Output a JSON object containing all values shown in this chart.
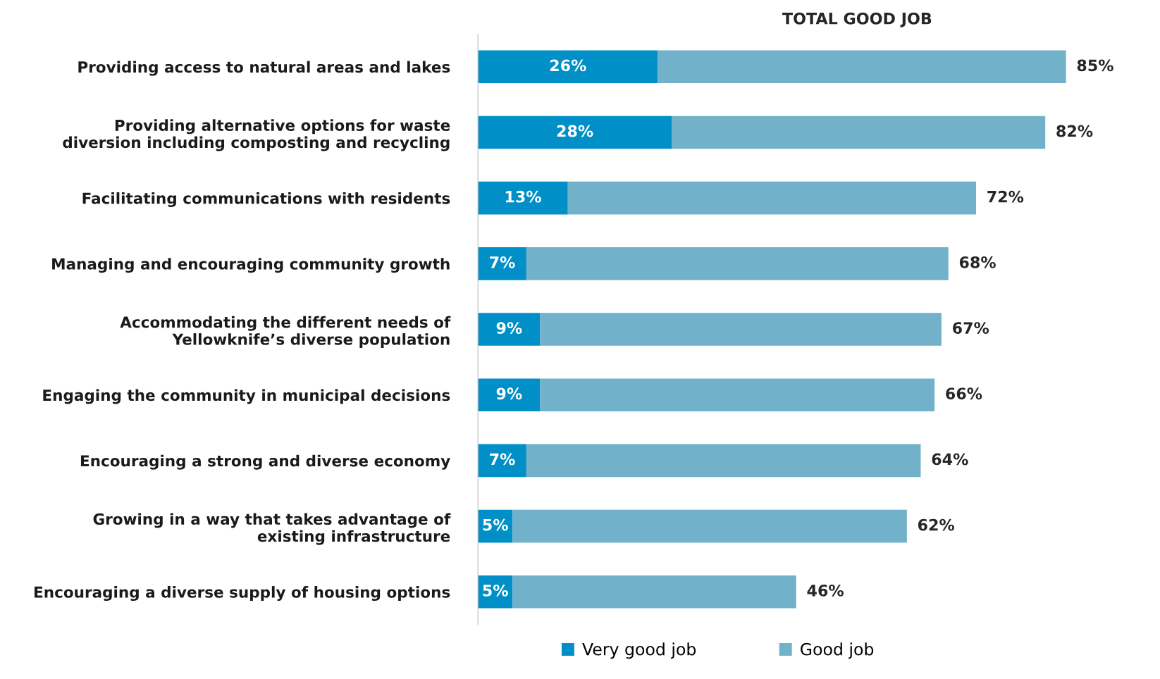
{
  "chart_data": {
    "type": "bar",
    "orientation": "horizontal",
    "stacked": true,
    "title": "TOTAL GOOD JOB",
    "categories": [
      "Providing access to natural areas and lakes",
      "Providing alternative options for waste\ndiversion including composting and recycling",
      "Facilitating communications with residents",
      "Managing and encouraging community growth",
      "Accommodating the different needs of\nYellowknife’s diverse population",
      "Engaging the community in municipal decisions",
      "Encouraging a strong and diverse economy",
      "Growing in a way that takes advantage of\nexisting infrastructure",
      "Encouraging a diverse supply of housing options"
    ],
    "series": [
      {
        "name": "Very good job",
        "color": "#008fc7",
        "values": [
          26,
          28,
          13,
          7,
          9,
          9,
          7,
          5,
          5
        ],
        "value_labels": [
          "26%",
          "28%",
          "13%",
          "7%",
          "9%",
          "9%",
          "7%",
          "5%",
          "5%"
        ]
      },
      {
        "name": "Good job",
        "color": "#72b1ca",
        "values": [
          59,
          54,
          59,
          61,
          58,
          57,
          57,
          57,
          41
        ]
      }
    ],
    "totals": [
      "85%",
      "82%",
      "72%",
      "68%",
      "67%",
      "66%",
      "64%",
      "62%",
      "46%"
    ],
    "tick_labels": "y",
    "grid": false,
    "legend": "bottom"
  }
}
